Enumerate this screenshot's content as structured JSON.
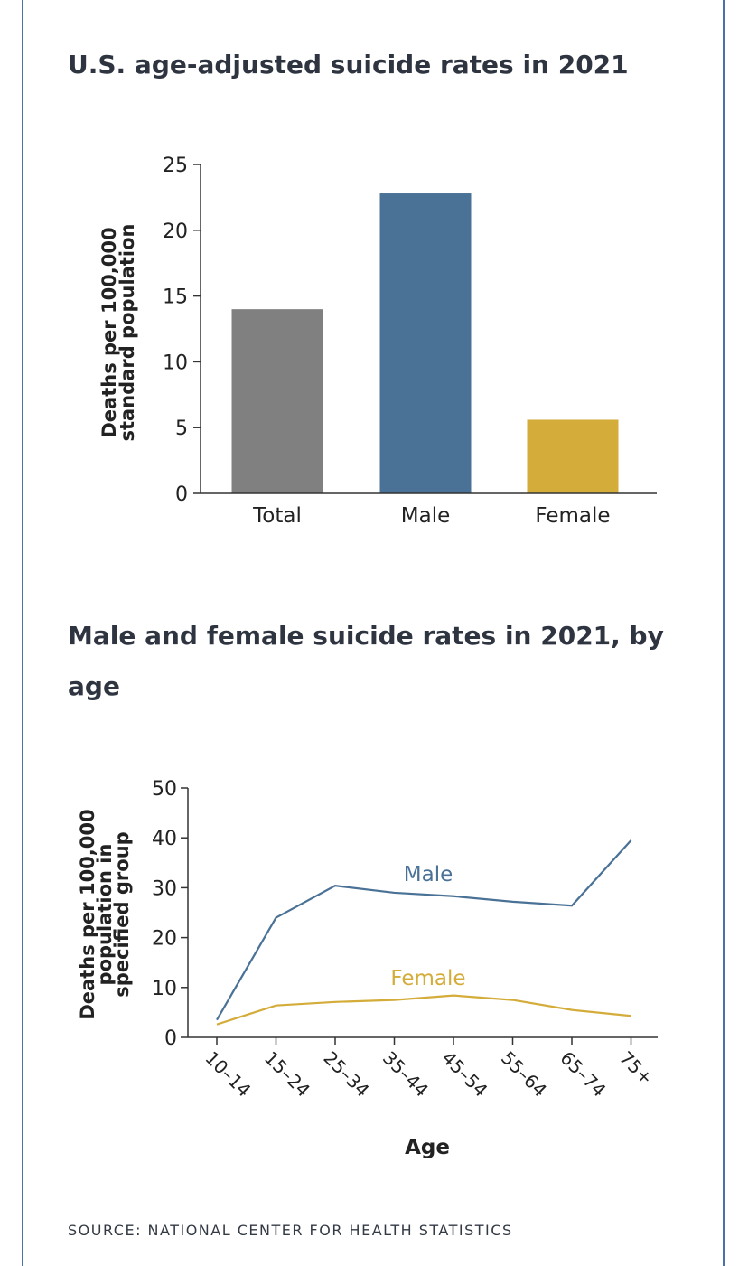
{
  "colors": {
    "total": "#808080",
    "male": "#4a7296",
    "female": "#d4ac3a",
    "axis": "#333333",
    "title": "#2e3440",
    "frame": "#4a72a8"
  },
  "source": "SOURCE: NATIONAL CENTER FOR HEALTH STATISTICS",
  "chart_data": [
    {
      "type": "bar",
      "title": "U.S. age-adjusted suicide rates in 2021",
      "categories": [
        "Total",
        "Male",
        "Female"
      ],
      "values": [
        14.0,
        22.8,
        5.6
      ],
      "ylabel_lines": [
        "Deaths per 100,000",
        "standard population"
      ],
      "xlabel": "",
      "ylim": [
        0,
        25
      ],
      "yticks": [
        0,
        5,
        10,
        15,
        20,
        25
      ],
      "grid": false,
      "legend": "none"
    },
    {
      "type": "line",
      "title": "Male and female suicide rates in 2021, by age",
      "categories": [
        "10–14",
        "15–24",
        "25–34",
        "35–44",
        "45–54",
        "55–64",
        "65–74",
        "75+"
      ],
      "series": [
        {
          "name": "Male",
          "values": [
            3.5,
            24.0,
            30.4,
            29.0,
            28.3,
            27.2,
            26.4,
            39.5
          ]
        },
        {
          "name": "Female",
          "values": [
            2.6,
            6.4,
            7.1,
            7.5,
            8.4,
            7.5,
            5.5,
            4.3
          ]
        }
      ],
      "series_labels": [
        "Male",
        "Female"
      ],
      "ylabel_lines": [
        "Deaths per 100,000",
        "population in",
        "specified group"
      ],
      "xlabel": "Age",
      "ylim": [
        0,
        50
      ],
      "yticks": [
        0,
        10,
        20,
        30,
        40,
        50
      ],
      "grid": false,
      "legend": "inline-labels"
    }
  ]
}
